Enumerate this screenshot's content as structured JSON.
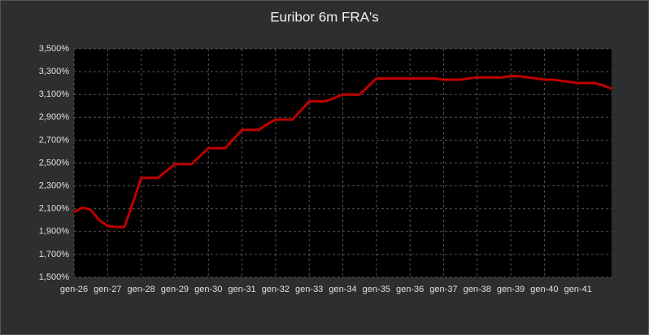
{
  "chart_data": {
    "type": "line",
    "title": "Euribor 6m FRA's",
    "categories": [
      "gen-26",
      null,
      null,
      null,
      "gen-27",
      null,
      null,
      null,
      "gen-28",
      null,
      null,
      null,
      "gen-29",
      null,
      null,
      null,
      "gen-30",
      null,
      null,
      null,
      "gen-31",
      null,
      null,
      null,
      "gen-32",
      null,
      null,
      null,
      "gen-33",
      null,
      null,
      null,
      "gen-34",
      null,
      null,
      null,
      "gen-35",
      null,
      null,
      null,
      "gen-36",
      null,
      null,
      null,
      "gen-37",
      null,
      null,
      null,
      "gen-38",
      null,
      null,
      null,
      "gen-39",
      null,
      null,
      null,
      "gen-40",
      null,
      null,
      null,
      "gen-41",
      null,
      null,
      null,
      null
    ],
    "series": [
      {
        "name": "Euribor 6m FRA",
        "color": "#c00000",
        "values": [
          2.07,
          2.11,
          2.09,
          2.0,
          1.95,
          1.94,
          1.94,
          2.15,
          2.37,
          2.37,
          2.37,
          2.43,
          2.49,
          2.49,
          2.49,
          2.56,
          2.63,
          2.63,
          2.63,
          2.71,
          2.79,
          2.79,
          2.79,
          2.84,
          2.88,
          2.88,
          2.88,
          2.96,
          3.04,
          3.04,
          3.04,
          3.07,
          3.1,
          3.1,
          3.1,
          3.17,
          3.24,
          3.24,
          3.24,
          3.24,
          3.24,
          3.24,
          3.24,
          3.24,
          3.23,
          3.23,
          3.23,
          3.24,
          3.25,
          3.25,
          3.25,
          3.25,
          3.26,
          3.26,
          3.25,
          3.24,
          3.23,
          3.23,
          3.22,
          3.21,
          3.2,
          3.2,
          3.2,
          3.18,
          3.15
        ]
      }
    ],
    "ylim": [
      1.5,
      3.5
    ],
    "yticks": [
      {
        "value": 1.5,
        "label": "1,500%"
      },
      {
        "value": 1.7,
        "label": "1,700%"
      },
      {
        "value": 1.9,
        "label": "1,900%"
      },
      {
        "value": 2.1,
        "label": "2,100%"
      },
      {
        "value": 2.3,
        "label": "2,300%"
      },
      {
        "value": 2.5,
        "label": "2,500%"
      },
      {
        "value": 2.7,
        "label": "2,700%"
      },
      {
        "value": 2.9,
        "label": "2,900%"
      },
      {
        "value": 3.1,
        "label": "3,100%"
      },
      {
        "value": 3.3,
        "label": "3,300%"
      },
      {
        "value": 3.5,
        "label": "3,500%"
      }
    ],
    "grid": true
  }
}
